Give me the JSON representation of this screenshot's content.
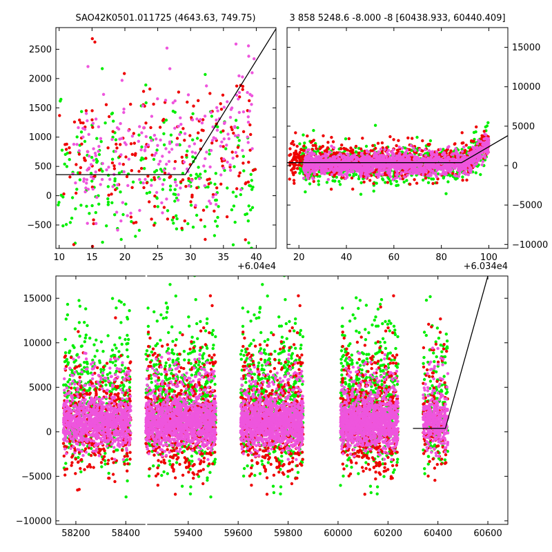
{
  "figure": {
    "background": "#ffffff",
    "colors": {
      "green": "#00ee00",
      "red": "#ee0000",
      "magenta": "#ee55dd",
      "line": "#000000"
    }
  },
  "chart_data": [
    {
      "id": "top_left",
      "type": "scatter",
      "title": "SAO42K0501.011725 (4643.63, 749.75)",
      "xlim": [
        9.5,
        43
      ],
      "ylim": [
        -900,
        2870
      ],
      "xticks": [
        10,
        15,
        20,
        25,
        30,
        35,
        40
      ],
      "xtick_labels": [
        "10",
        "15",
        "20",
        "25",
        "30",
        "35",
        "40"
      ],
      "x_offset_label": "+6.04e4",
      "yticks": [
        -500,
        0,
        500,
        1000,
        1500,
        2000,
        2500
      ],
      "ytick_labels": [
        "−500",
        "0",
        "500",
        "1000",
        "1500",
        "2000",
        "2500"
      ],
      "yaxis_side": "left",
      "grid": false,
      "series": [
        {
          "color": "green",
          "x_range": [
            9.8,
            40
          ],
          "y_center": 350,
          "y_spread": 800,
          "count": 240
        },
        {
          "color": "red",
          "x_range": [
            9.8,
            40
          ],
          "y_center": 600,
          "y_spread": 900,
          "count": 200
        },
        {
          "color": "magenta",
          "x_range": [
            12,
            40
          ],
          "y_center": 650,
          "y_spread": 800,
          "count": 230
        }
      ],
      "model_line": {
        "x": [
          9.5,
          29.2,
          43
        ],
        "y": [
          360,
          360,
          2850
        ]
      }
    },
    {
      "id": "top_right",
      "type": "scatter",
      "title": "3 858 5248.6 -8.000 -8 [60438.933, 60440.409]",
      "xlim": [
        15,
        108
      ],
      "ylim": [
        -10500,
        17500
      ],
      "xticks": [
        20,
        40,
        60,
        80,
        100
      ],
      "xtick_labels": [
        "20",
        "40",
        "60",
        "80",
        "100"
      ],
      "x_offset_label": "+6.034e4",
      "yticks": [
        -10000,
        -5000,
        0,
        5000,
        10000,
        15000
      ],
      "ytick_labels": [
        "−10000",
        "−5000",
        "0",
        "5000",
        "10000",
        "15000"
      ],
      "yaxis_side": "right",
      "grid": false,
      "series": [
        {
          "color": "green",
          "x_range": [
            20,
            100
          ],
          "y_center": 200,
          "y_spread": 1500,
          "count": 900
        },
        {
          "color": "red",
          "x_range": [
            16,
            100
          ],
          "y_center": 600,
          "y_spread": 1400,
          "count": 800
        },
        {
          "color": "magenta",
          "x_range": [
            22,
            100
          ],
          "y_center": 200,
          "y_spread": 900,
          "count": 1600
        }
      ],
      "model_line": {
        "x": [
          15,
          88.5,
          108
        ],
        "y": [
          380,
          380,
          3800
        ]
      }
    },
    {
      "id": "bottom",
      "type": "scatter",
      "title": "",
      "xlim": [
        58120,
        60680
      ],
      "ylim": [
        -10400,
        17500
      ],
      "xticks": [
        58200,
        58400,
        59400,
        59600,
        59800,
        60000,
        60200,
        60400,
        60600
      ],
      "xtick_labels": [
        "58200",
        "58400",
        "59400",
        "59600",
        "59800",
        "60000",
        "60200",
        "60400",
        "60600"
      ],
      "x_break": [
        58480,
        59230
      ],
      "yticks": [
        -10000,
        -5000,
        0,
        5000,
        10000,
        15000
      ],
      "ytick_labels": [
        "−10000",
        "−5000",
        "0",
        "5000",
        "10000",
        "15000"
      ],
      "yaxis_side": "left",
      "grid": false,
      "seasons": [
        {
          "x_range": [
            58150,
            58420
          ],
          "count": 1000
        },
        {
          "x_range": [
            59230,
            59510
          ],
          "count": 1300
        },
        {
          "x_range": [
            59610,
            59860
          ],
          "count": 1200
        },
        {
          "x_range": [
            60010,
            60240
          ],
          "count": 1200
        },
        {
          "x_range": [
            60340,
            60440
          ],
          "count": 350
        }
      ],
      "model_line": {
        "x": [
          60300,
          60430,
          60600
        ],
        "y": [
          380,
          380,
          17500
        ]
      }
    }
  ]
}
